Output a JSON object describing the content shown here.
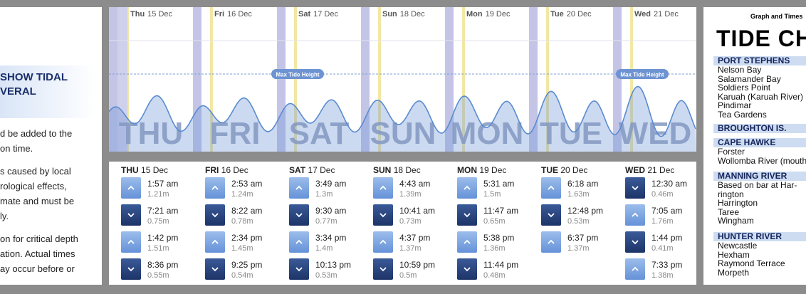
{
  "left": {
    "heading": [
      "SHOW TIDAL",
      "VERAL"
    ],
    "paragraphs": [
      [
        "d be added to the",
        "on time."
      ],
      [
        "s caused by local",
        "rological effects,",
        "mate and must be",
        "ly."
      ],
      [
        "on for critical depth",
        "ation. Actual times",
        "ay occur before or"
      ]
    ]
  },
  "graph": {
    "max_label": "Max Tide Height",
    "days": [
      {
        "name": "Thu",
        "date": "15 Dec",
        "watermark": "THU"
      },
      {
        "name": "Fri",
        "date": "16 Dec",
        "watermark": "FRI"
      },
      {
        "name": "Sat",
        "date": "17 Dec",
        "watermark": "SAT"
      },
      {
        "name": "Sun",
        "date": "18 Dec",
        "watermark": "SUN"
      },
      {
        "name": "Mon",
        "date": "19 Dec",
        "watermark": "MON"
      },
      {
        "name": "Tue",
        "date": "20 Dec",
        "watermark": "TUE"
      },
      {
        "name": "Wed",
        "date": "21 Dec",
        "watermark": "WED"
      }
    ]
  },
  "table": {
    "days": [
      {
        "name": "THU",
        "date": "15 Dec",
        "tides": [
          {
            "time": "1:57 am",
            "height": "1.21m"
          },
          {
            "time": "7:21 am",
            "height": "0.75m"
          },
          {
            "time": "1:42 pm",
            "height": "1.51m"
          },
          {
            "time": "8:36 pm",
            "height": "0.55m"
          }
        ]
      },
      {
        "name": "FRI",
        "date": "16 Dec",
        "tides": [
          {
            "time": "2:53 am",
            "height": "1.24m"
          },
          {
            "time": "8:22 am",
            "height": "0.78m"
          },
          {
            "time": "2:34 pm",
            "height": "1.45m"
          },
          {
            "time": "9:25 pm",
            "height": "0.54m"
          }
        ]
      },
      {
        "name": "SAT",
        "date": "17 Dec",
        "tides": [
          {
            "time": "3:49 am",
            "height": "1.3m"
          },
          {
            "time": "9:30 am",
            "height": "0.77m"
          },
          {
            "time": "3:34 pm",
            "height": "1.4m"
          },
          {
            "time": "10:13 pm",
            "height": "0.53m"
          }
        ]
      },
      {
        "name": "SUN",
        "date": "18 Dec",
        "tides": [
          {
            "time": "4:43 am",
            "height": "1.39m"
          },
          {
            "time": "10:41 am",
            "height": "0.73m"
          },
          {
            "time": "4:37 pm",
            "height": "1.37m"
          },
          {
            "time": "10:59 pm",
            "height": "0.5m"
          }
        ]
      },
      {
        "name": "MON",
        "date": "19 Dec",
        "tides": [
          {
            "time": "5:31 am",
            "height": "1.5m"
          },
          {
            "time": "11:47 am",
            "height": "0.65m"
          },
          {
            "time": "5:38 pm",
            "height": "1.36m"
          },
          {
            "time": "11:44 pm",
            "height": "0.48m"
          }
        ]
      },
      {
        "name": "TUE",
        "date": "20 Dec",
        "tides": [
          {
            "time": "6:18 am",
            "height": "1.63m"
          },
          {
            "time": "12:48 pm",
            "height": "0.53m"
          },
          {
            "time": "6:37 pm",
            "height": "1.37m"
          }
        ]
      },
      {
        "name": "WED",
        "date": "21 Dec",
        "tides": [
          {
            "time": "12:30 am",
            "height": "0.46m"
          },
          {
            "time": "7:05 am",
            "height": "1.76m"
          },
          {
            "time": "1:44 pm",
            "height": "0.41m"
          },
          {
            "time": "7:33 pm",
            "height": "1.38m"
          }
        ]
      }
    ]
  },
  "sidebar": {
    "kicker": "Graph and Times",
    "title": "TIDE CH",
    "sections": [
      {
        "heading": "PORT STEPHENS",
        "items": [
          "Nelson Bay",
          "Salamander Bay",
          "Soldiers Point",
          "Karuah (Karuah River)",
          "Pindimar",
          "Tea Gardens"
        ]
      },
      {
        "heading": "BROUGHTON IS.",
        "items": []
      },
      {
        "heading": "CAPE HAWKE",
        "items": [
          "Forster",
          "Wollomba River (mouth)"
        ]
      },
      {
        "heading": "MANNING RIVER",
        "items": [
          "Based on bar at Har-",
          "rington",
          "Harrington",
          "Taree",
          "Wingham"
        ]
      },
      {
        "heading": "HUNTER RIVER",
        "items": [
          "Newcastle",
          "Hexham",
          "Raymond Terrace",
          "Morpeth"
        ]
      }
    ]
  }
}
